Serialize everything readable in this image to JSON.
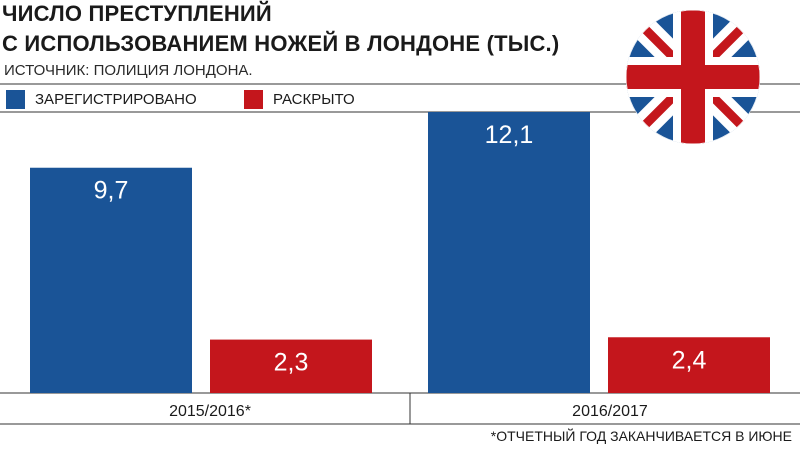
{
  "title_lines": [
    "ЧИСЛО ПРЕСТУПЛЕНИЙ",
    "С ИСПОЛЬЗОВАНИЕМ НОЖЕЙ В ЛОНДОНЕ (ТЫС.)"
  ],
  "source": "ИСТОЧНИК: ПОЛИЦИЯ ЛОНДОНА.",
  "footnote": "*ОТЧЕТНЫЙ ГОД ЗАКАНЧИВАЕТСЯ В ИЮНЕ",
  "flag_icon": "uk-flag-icon",
  "colors": {
    "registered": "#1a5497",
    "solved": "#c4161c",
    "divider": "#333333",
    "flag_blue": "#1a5497",
    "flag_red": "#c4161c"
  },
  "chart_data": {
    "type": "bar",
    "title": "ЧИСЛО ПРЕСТУПЛЕНИЙ С ИСПОЛЬЗОВАНИЕМ НОЖЕЙ В ЛОНДОНЕ (ТЫС.)",
    "categories": [
      "2015/2016*",
      "2016/2017"
    ],
    "series": [
      {
        "name": "ЗАРЕГИСТРИРОВАНО",
        "values": [
          9.7,
          12.1
        ],
        "labels": [
          "9,7",
          "12,1"
        ],
        "color": "#1a5497"
      },
      {
        "name": "РАСКРЫТО",
        "values": [
          2.3,
          2.4
        ],
        "labels": [
          "2,3",
          "2,4"
        ],
        "color": "#c4161c"
      }
    ],
    "xlabel": "",
    "ylabel": "",
    "ylim": [
      0,
      12.1
    ],
    "grid": false,
    "legend": "top-left"
  }
}
